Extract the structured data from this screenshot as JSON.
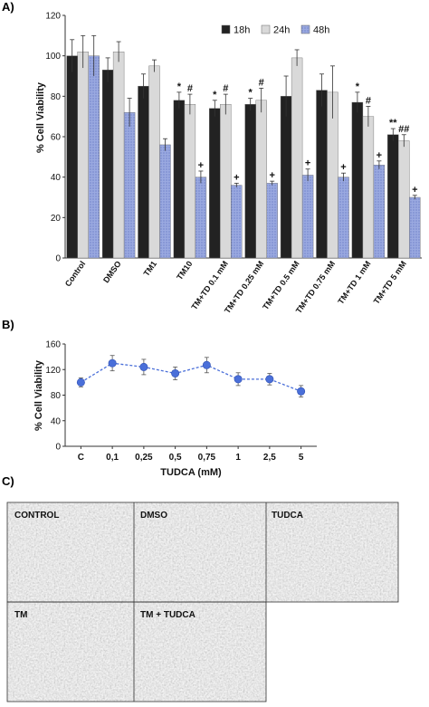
{
  "panel_labels": [
    "A)",
    "B)",
    "C)"
  ],
  "chart_data": [
    {
      "type": "bar",
      "ylabel": "% Cell Viability",
      "ylim": [
        0,
        120
      ],
      "yticks": [
        0,
        20,
        40,
        60,
        80,
        100,
        120
      ],
      "categories": [
        "Control",
        "DMSO",
        "TM1",
        "TM10",
        "TM+TD 0.1 mM",
        "TM+TD 0.25 mM",
        "TM+TD 0.5 mM",
        "TM+TD 0.75 mM",
        "TM+TD 1 mM",
        "TM+TD 5 mM"
      ],
      "legend_position": "top-right",
      "series": [
        {
          "name": "18h",
          "color": "#222222",
          "values": [
            100,
            93,
            85,
            78,
            74,
            76,
            80,
            83,
            77,
            61
          ],
          "errors": [
            8,
            6,
            6,
            4,
            4,
            3,
            10,
            8,
            5,
            3
          ],
          "marks": [
            "",
            "",
            "",
            "*",
            "*",
            "*",
            "",
            "",
            "*",
            "**"
          ]
        },
        {
          "name": "24h",
          "color": "#d9d9d9",
          "values": [
            102,
            102,
            95,
            76,
            76,
            78,
            99,
            82,
            70,
            58
          ],
          "errors": [
            8,
            5,
            3,
            5,
            5,
            6,
            4,
            13,
            5,
            3
          ],
          "marks": [
            "",
            "",
            "",
            "#",
            "#",
            "#",
            "",
            "",
            "#",
            "##"
          ]
        },
        {
          "name": "48h",
          "color": "#9aa9e0",
          "values": [
            100,
            72,
            56,
            40,
            36,
            37,
            41,
            40,
            46,
            30
          ],
          "errors": [
            10,
            7,
            3,
            3,
            1,
            1,
            3,
            2,
            2,
            1
          ],
          "marks": [
            "",
            "",
            "",
            "+",
            "+",
            "+",
            "+",
            "+",
            "+",
            "+"
          ]
        }
      ]
    },
    {
      "type": "line",
      "ylabel": "% Cell Viability",
      "xlabel": "TUDCA (mM)",
      "ylim": [
        0,
        160
      ],
      "yticks": [
        0,
        40,
        80,
        120,
        160
      ],
      "categories": [
        "C",
        "0,1",
        "0,25",
        "0,5",
        "0,75",
        "1",
        "2,5",
        "5"
      ],
      "series": [
        {
          "color": "#4a6fd9",
          "values": [
            100,
            130,
            124,
            114,
            127,
            105,
            105,
            86
          ],
          "errors": [
            7,
            12,
            12,
            10,
            12,
            10,
            9,
            9
          ]
        }
      ]
    }
  ],
  "micrographs": {
    "labels": [
      "CONTROL",
      "DMSO",
      "TUDCA",
      "TM",
      "TM + TUDCA"
    ]
  }
}
